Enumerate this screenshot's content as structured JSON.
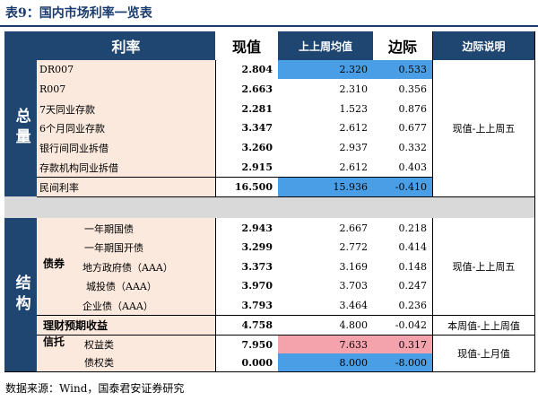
{
  "title": "表9：国内市场利率一览表",
  "header": {
    "rate": "利率",
    "current": "现值",
    "prev_avg": "上上周均值",
    "margin": "边际",
    "margin_note": "边际说明"
  },
  "groups": {
    "total": "总量",
    "structure": "结构"
  },
  "total_rows": [
    {
      "name": "DR007",
      "current": "2.804",
      "prev": "2.320",
      "margin": "0.533"
    },
    {
      "name": "R007",
      "current": "2.663",
      "prev": "2.310",
      "margin": "0.356"
    },
    {
      "name": "7天同业存款",
      "current": "2.281",
      "prev": "1.523",
      "margin": "0.876"
    },
    {
      "name": "6个月同业存款",
      "current": "3.347",
      "prev": "2.612",
      "margin": "0.677"
    },
    {
      "name": "银行间同业拆借",
      "current": "3.260",
      "prev": "2.937",
      "margin": "0.332"
    },
    {
      "name": "存款机构同业拆借",
      "current": "2.915",
      "prev": "2.612",
      "margin": "0.403"
    },
    {
      "name": "民间利率",
      "current": "16.500",
      "prev": "15.936",
      "margin": "-0.410"
    }
  ],
  "total_note": "现值-上上周五",
  "bond_label": "债券",
  "bond_rows": [
    {
      "name": "一年期国债",
      "current": "2.943",
      "prev": "2.667",
      "margin": "0.218"
    },
    {
      "name": "一年期国开债",
      "current": "3.299",
      "prev": "2.772",
      "margin": "0.414"
    },
    {
      "name": "地方政府债（AAA）",
      "current": "3.373",
      "prev": "3.169",
      "margin": "0.148"
    },
    {
      "name": "城投债（AAA）",
      "current": "3.970",
      "prev": "3.703",
      "margin": "0.247"
    },
    {
      "name": "企业债（AAA）",
      "current": "3.793",
      "prev": "3.464",
      "margin": "0.236"
    }
  ],
  "bond_note": "现值-上上周五",
  "wealth_row": {
    "name": "理财预期收益",
    "current": "4.758",
    "prev": "4.800",
    "margin": "-0.042",
    "note": "本周值-上上周值"
  },
  "trust_label": "信托",
  "trust_rows": [
    {
      "name": "权益类",
      "current": "7.950",
      "prev": "7.633",
      "margin": "0.317"
    },
    {
      "name": "债权类",
      "current": "0.000",
      "prev": "8.000",
      "margin": "-8.000"
    }
  ],
  "trust_note": "现值-上月值",
  "source": "数据来源：Wind，国泰君安证券研究",
  "colors": {
    "header": "#1f4670",
    "highlight_blue": "#4a9ee6",
    "highlight_pink": "#f4a3ad",
    "name_bg": "#fbe9dd"
  }
}
